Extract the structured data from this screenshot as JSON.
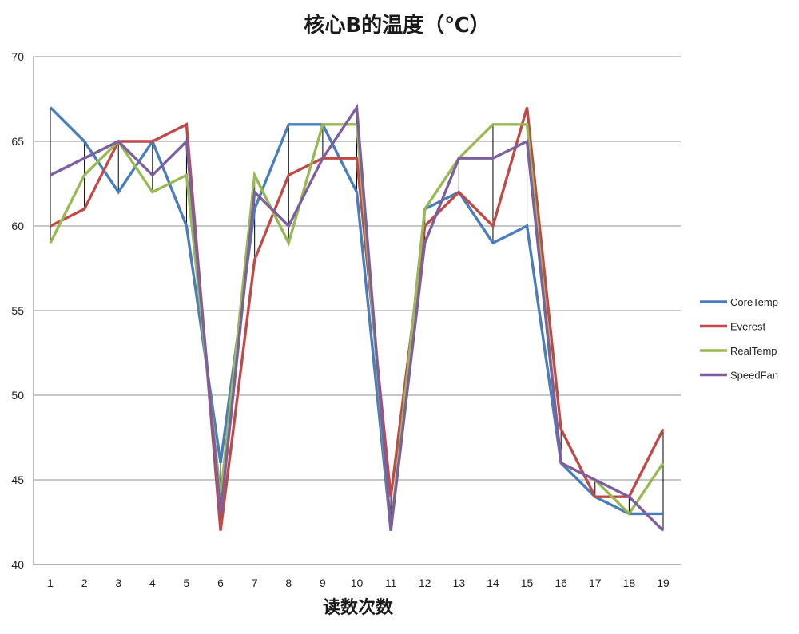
{
  "chart_data": {
    "type": "line",
    "title": "核心B的温度（℃）",
    "xlabel": "读数次数",
    "ylabel": "",
    "categories": [
      "1",
      "2",
      "3",
      "4",
      "5",
      "6",
      "7",
      "8",
      "9",
      "10",
      "11",
      "12",
      "13",
      "14",
      "15",
      "16",
      "17",
      "18",
      "19"
    ],
    "ylim": [
      40,
      70
    ],
    "yticks": [
      40,
      45,
      50,
      55,
      60,
      65,
      70
    ],
    "grid": true,
    "high_low_lines": true,
    "legend_position": "right",
    "series": [
      {
        "name": "CoreTemp",
        "color": "#4a7ebb",
        "values": [
          67,
          65,
          62,
          65,
          60,
          46,
          61,
          66,
          66,
          62,
          42,
          61,
          62,
          59,
          60,
          46,
          44,
          43,
          43
        ]
      },
      {
        "name": "Everest",
        "color": "#be4b48",
        "values": [
          60,
          61,
          65,
          65,
          66,
          42,
          58,
          63,
          64,
          64,
          44,
          60,
          62,
          60,
          67,
          48,
          44,
          44,
          48
        ]
      },
      {
        "name": "RealTemp",
        "color": "#98b954",
        "values": [
          59,
          63,
          65,
          62,
          63,
          44,
          63,
          59,
          66,
          66,
          42,
          61,
          64,
          66,
          66,
          46,
          45,
          43,
          46
        ]
      },
      {
        "name": "SpeedFan",
        "color": "#7d5fa0",
        "values": [
          63,
          64,
          65,
          63,
          65,
          43,
          62,
          60,
          64,
          67,
          42,
          59,
          64,
          64,
          65,
          46,
          45,
          44,
          42
        ]
      }
    ]
  }
}
